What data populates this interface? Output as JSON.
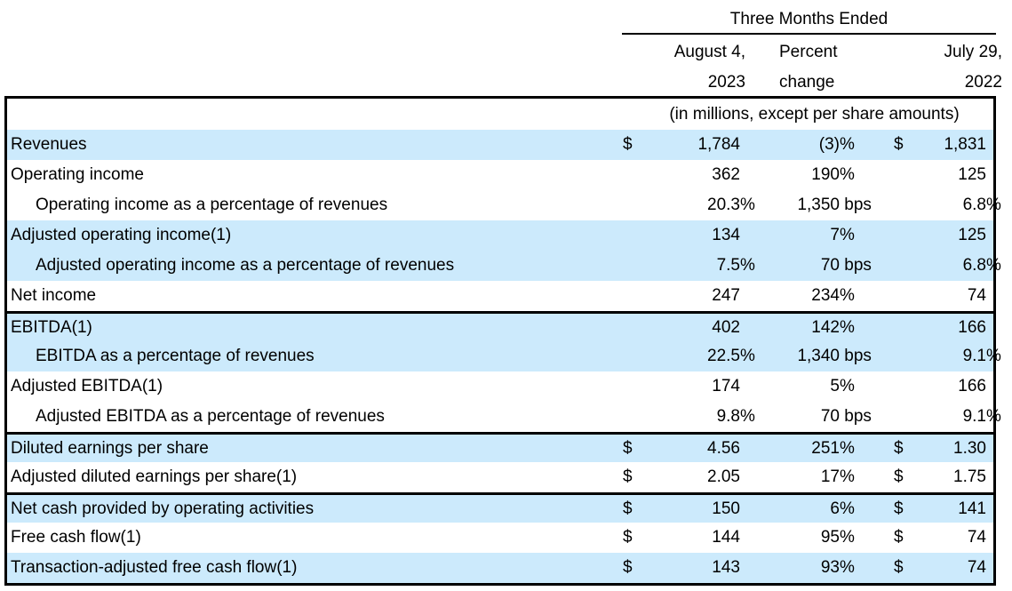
{
  "header": {
    "period_title": "Three Months Ended",
    "columns": [
      {
        "line1": "August 4,",
        "line2": "2023"
      },
      {
        "line1": "Percent",
        "line2": "change"
      },
      {
        "line1": "July 29,",
        "line2": "2022"
      }
    ],
    "units_note": "(in millions, except per share amounts)"
  },
  "colors": {
    "row_highlight": "#cceafc",
    "border": "#000000",
    "text": "#000000"
  },
  "rows": [
    {
      "label": "Revenues",
      "indent": false,
      "shaded": true,
      "section_start": false,
      "d1": "$",
      "v1": "1,784",
      "s1": "",
      "v2": "(3)",
      "s2": "%",
      "d3": "$",
      "v3": "1,831",
      "s3": ""
    },
    {
      "label": "Operating income",
      "indent": false,
      "shaded": false,
      "section_start": false,
      "d1": "",
      "v1": "362",
      "s1": "",
      "v2": "190",
      "s2": "%",
      "d3": "",
      "v3": "125",
      "s3": ""
    },
    {
      "label": "Operating income as a percentage of revenues",
      "indent": true,
      "shaded": false,
      "section_start": false,
      "d1": "",
      "v1": "20.3",
      "s1": "%",
      "v2": "1,350",
      "s2": " bps",
      "d3": "",
      "v3": "6.8",
      "s3": "%"
    },
    {
      "label": "Adjusted operating income(1)",
      "indent": false,
      "shaded": true,
      "section_start": false,
      "d1": "",
      "v1": "134",
      "s1": "",
      "v2": "7",
      "s2": "%",
      "d3": "",
      "v3": "125",
      "s3": ""
    },
    {
      "label": "Adjusted operating income as a percentage of revenues",
      "indent": true,
      "shaded": true,
      "section_start": false,
      "d1": "",
      "v1": "7.5",
      "s1": "%",
      "v2": "70",
      "s2": " bps",
      "d3": "",
      "v3": "6.8",
      "s3": "%"
    },
    {
      "label": "Net income",
      "indent": false,
      "shaded": false,
      "section_start": false,
      "d1": "",
      "v1": "247",
      "s1": "",
      "v2": "234",
      "s2": "%",
      "d3": "",
      "v3": "74",
      "s3": ""
    },
    {
      "label": "EBITDA(1)",
      "indent": false,
      "shaded": true,
      "section_start": true,
      "d1": "",
      "v1": "402",
      "s1": "",
      "v2": "142",
      "s2": "%",
      "d3": "",
      "v3": "166",
      "s3": ""
    },
    {
      "label": "EBITDA as a percentage of revenues",
      "indent": true,
      "shaded": true,
      "section_start": false,
      "d1": "",
      "v1": "22.5",
      "s1": "%",
      "v2": "1,340",
      "s2": " bps",
      "d3": "",
      "v3": "9.1",
      "s3": "%"
    },
    {
      "label": "Adjusted EBITDA(1)",
      "indent": false,
      "shaded": false,
      "section_start": false,
      "d1": "",
      "v1": "174",
      "s1": "",
      "v2": "5",
      "s2": "%",
      "d3": "",
      "v3": "166",
      "s3": ""
    },
    {
      "label": "Adjusted EBITDA as a percentage of revenues",
      "indent": true,
      "shaded": false,
      "section_start": false,
      "d1": "",
      "v1": "9.8",
      "s1": "%",
      "v2": "70",
      "s2": " bps",
      "d3": "",
      "v3": "9.1",
      "s3": "%"
    },
    {
      "label": "Diluted earnings per share",
      "indent": false,
      "shaded": true,
      "section_start": true,
      "d1": "$",
      "v1": "4.56",
      "s1": "",
      "v2": "251",
      "s2": "%",
      "d3": "$",
      "v3": "1.30",
      "s3": ""
    },
    {
      "label": "Adjusted diluted earnings per share(1)",
      "indent": false,
      "shaded": false,
      "section_start": false,
      "d1": "$",
      "v1": "2.05",
      "s1": "",
      "v2": "17",
      "s2": "%",
      "d3": "$",
      "v3": "1.75",
      "s3": ""
    },
    {
      "label": "Net cash provided by operating activities",
      "indent": false,
      "shaded": true,
      "section_start": true,
      "d1": "$",
      "v1": "150",
      "s1": "",
      "v2": "6",
      "s2": "%",
      "d3": "$",
      "v3": "141",
      "s3": ""
    },
    {
      "label": "Free cash flow(1)",
      "indent": false,
      "shaded": false,
      "section_start": false,
      "d1": "$",
      "v1": "144",
      "s1": "",
      "v2": "95",
      "s2": "%",
      "d3": "$",
      "v3": "74",
      "s3": ""
    },
    {
      "label": "Transaction-adjusted free cash flow(1)",
      "indent": false,
      "shaded": true,
      "section_start": false,
      "d1": "$",
      "v1": "143",
      "s1": "",
      "v2": "93",
      "s2": "%",
      "d3": "$",
      "v3": "74",
      "s3": ""
    }
  ]
}
